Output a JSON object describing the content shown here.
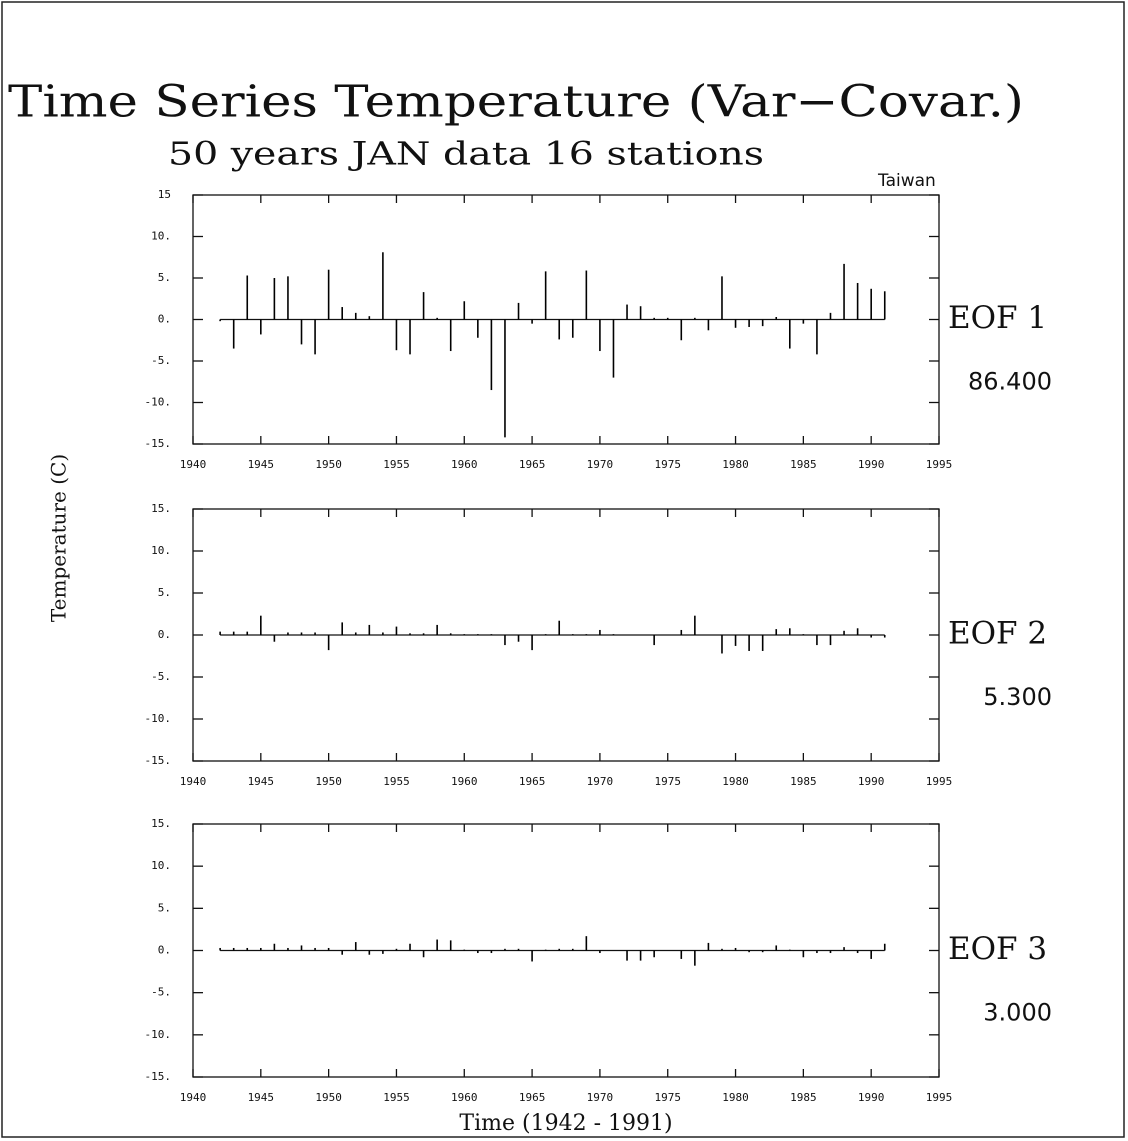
{
  "chart_data": [
    {
      "type": "bar",
      "title": "Time Series Temperature (Var−Covar.)",
      "subtitle": "50 years JAN data 16 stations",
      "annotation": "Taiwan",
      "label": "EOF 1",
      "variance": "86.400",
      "color": "#000000",
      "x": [
        1942,
        1943,
        1944,
        1945,
        1946,
        1947,
        1948,
        1949,
        1950,
        1951,
        1952,
        1953,
        1954,
        1955,
        1956,
        1957,
        1958,
        1959,
        1960,
        1961,
        1962,
        1963,
        1964,
        1965,
        1966,
        1967,
        1968,
        1969,
        1970,
        1971,
        1972,
        1973,
        1974,
        1975,
        1976,
        1977,
        1978,
        1979,
        1980,
        1981,
        1982,
        1983,
        1984,
        1985,
        1986,
        1987,
        1988,
        1989,
        1990,
        1991
      ],
      "values": [
        -0.2,
        -3.5,
        5.3,
        -1.8,
        5.0,
        5.2,
        -3.0,
        -4.2,
        6.0,
        1.5,
        0.8,
        0.4,
        8.1,
        -3.7,
        -4.2,
        3.3,
        0.2,
        -3.8,
        2.2,
        -2.2,
        -8.5,
        -14.2,
        2.0,
        -0.5,
        5.8,
        -2.4,
        -2.2,
        5.9,
        -3.8,
        -7.0,
        1.8,
        1.6,
        0.2,
        0.2,
        -2.5,
        0.2,
        -1.3,
        5.2,
        -1.0,
        -0.9,
        -0.8,
        0.3,
        -3.5,
        -0.5,
        -4.2,
        0.8,
        6.7,
        4.4,
        3.7,
        3.4
      ],
      "xlim": [
        1940,
        1995
      ],
      "xticks": [
        1940,
        1945,
        1950,
        1955,
        1960,
        1965,
        1970,
        1975,
        1980,
        1985,
        1990,
        1995
      ],
      "ylim": [
        -15,
        15
      ],
      "yticks": [
        15,
        {
          "value": 10,
          "label": "10."
        },
        {
          "value": 5,
          "label": "5."
        },
        {
          "value": 0,
          "label": "0."
        },
        {
          "value": -5,
          "label": "-5."
        },
        {
          "value": -10,
          "label": "-10."
        },
        {
          "value": -15,
          "label": "-15."
        }
      ]
    },
    {
      "type": "bar",
      "y_label": "Temperature (C)",
      "label": "EOF 2",
      "variance": "5.300",
      "color": "#000000",
      "x": [
        1942,
        1943,
        1944,
        1945,
        1946,
        1947,
        1948,
        1949,
        1950,
        1951,
        1952,
        1953,
        1954,
        1955,
        1956,
        1957,
        1958,
        1959,
        1960,
        1961,
        1962,
        1963,
        1964,
        1965,
        1966,
        1967,
        1968,
        1969,
        1970,
        1971,
        1972,
        1973,
        1974,
        1975,
        1976,
        1977,
        1978,
        1979,
        1980,
        1981,
        1982,
        1983,
        1984,
        1985,
        1986,
        1987,
        1988,
        1989,
        1990,
        1991
      ],
      "values": [
        0.4,
        0.4,
        0.4,
        2.3,
        -0.8,
        0.3,
        0.3,
        0.3,
        -1.8,
        1.5,
        0.3,
        1.2,
        0.3,
        1.0,
        0.2,
        0.2,
        1.2,
        0.2,
        0.1,
        0.1,
        0.1,
        -1.2,
        -0.8,
        -1.8,
        0.1,
        1.7,
        0.1,
        0.1,
        0.6,
        0.1,
        0,
        0,
        -1.2,
        0,
        0.6,
        2.3,
        0,
        -2.2,
        -1.3,
        -1.9,
        -1.9,
        0.7,
        0.8,
        0.1,
        -1.2,
        -1.2,
        0.5,
        0.8,
        -0.3,
        -0.3
      ],
      "xlim": [
        1940,
        1995
      ],
      "xticks": [
        1940,
        1945,
        1950,
        1955,
        1960,
        1965,
        1970,
        1975,
        1980,
        1985,
        1990,
        1995
      ],
      "ylim": [
        -15,
        15
      ],
      "yticks": [
        {
          "value": 15,
          "label": "15."
        },
        {
          "value": 10,
          "label": "10."
        },
        {
          "value": 5,
          "label": "5."
        },
        {
          "value": 0,
          "label": "0."
        },
        {
          "value": -5,
          "label": "-5."
        },
        {
          "value": -10,
          "label": "-10."
        },
        {
          "value": -15,
          "label": "-15."
        }
      ]
    },
    {
      "type": "bar",
      "x_label": "Time (1942 - 1991)",
      "label": "EOF 3",
      "variance": "3.000",
      "color": "#000000",
      "x": [
        1942,
        1943,
        1944,
        1945,
        1946,
        1947,
        1948,
        1949,
        1950,
        1951,
        1952,
        1953,
        1954,
        1955,
        1956,
        1957,
        1958,
        1959,
        1960,
        1961,
        1962,
        1963,
        1964,
        1965,
        1966,
        1967,
        1968,
        1969,
        1970,
        1971,
        1972,
        1973,
        1974,
        1975,
        1976,
        1977,
        1978,
        1979,
        1980,
        1981,
        1982,
        1983,
        1984,
        1985,
        1986,
        1987,
        1988,
        1989,
        1990,
        1991
      ],
      "values": [
        0.3,
        0.3,
        0.3,
        0.3,
        0.8,
        0.3,
        0.6,
        0.3,
        0.3,
        -0.5,
        1.0,
        -0.5,
        -0.4,
        0.2,
        0.8,
        -0.8,
        1.3,
        1.2,
        0.1,
        -0.3,
        -0.3,
        0.2,
        0.2,
        -1.3,
        0.1,
        0.2,
        0.2,
        1.7,
        -0.3,
        0,
        -1.2,
        -1.2,
        -0.8,
        0,
        -1.0,
        -1.8,
        0.9,
        0.2,
        0.3,
        -0.2,
        -0.2,
        0.6,
        0.1,
        -0.8,
        -0.3,
        -0.3,
        0.4,
        -0.3,
        -1.0,
        0.8
      ],
      "xlim": [
        1940,
        1995
      ],
      "xticks": [
        1940,
        1945,
        1950,
        1955,
        1960,
        1965,
        1970,
        1975,
        1980,
        1985,
        1990,
        1995
      ],
      "ylim": [
        -15,
        15
      ],
      "yticks": [
        {
          "value": 15,
          "label": "15."
        },
        {
          "value": 10,
          "label": "10."
        },
        {
          "value": 5,
          "label": "5."
        },
        {
          "value": 0,
          "label": "0."
        },
        {
          "value": -5,
          "label": "-5."
        },
        {
          "value": -10,
          "label": "-10."
        },
        {
          "value": -15,
          "label": "-15."
        }
      ]
    }
  ]
}
